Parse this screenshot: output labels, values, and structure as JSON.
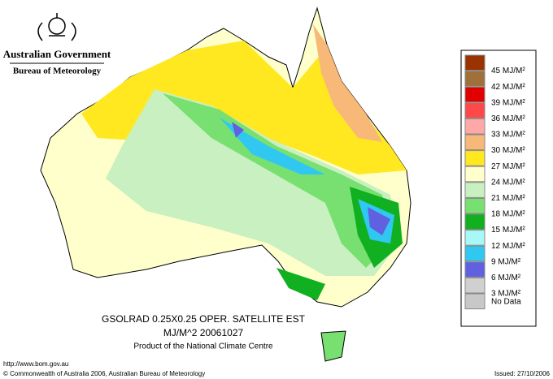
{
  "header": {
    "government": "Australian Government",
    "agency": "Bureau of Meteorology"
  },
  "legend": [
    {
      "label": "45 MJ/M²",
      "color": "#993300"
    },
    {
      "label": "42 MJ/M²",
      "color": "#a0703a"
    },
    {
      "label": "39 MJ/M²",
      "color": "#e00000"
    },
    {
      "label": "36 MJ/M²",
      "color": "#ff4848"
    },
    {
      "label": "33 MJ/M²",
      "color": "#ffa8a8"
    },
    {
      "label": "30 MJ/M²",
      "color": "#f7b878"
    },
    {
      "label": "27 MJ/M²",
      "color": "#ffe820"
    },
    {
      "label": "24 MJ/M²",
      "color": "#ffffcc"
    },
    {
      "label": "21 MJ/M²",
      "color": "#c8f0c0"
    },
    {
      "label": "18 MJ/M²",
      "color": "#78e070"
    },
    {
      "label": "15 MJ/M²",
      "color": "#10b020"
    },
    {
      "label": "12 MJ/M²",
      "color": "#a8f8f8"
    },
    {
      "label": "9 MJ/M²",
      "color": "#30c8f0"
    },
    {
      "label": "6 MJ/M²",
      "color": "#6060e0"
    },
    {
      "label": "3 MJ/M²",
      "color": "#d0d0d0"
    },
    {
      "label": "No Data",
      "color": "#c8c8c8"
    }
  ],
  "caption": {
    "line1": "GSOLRAD    0.25X0.25 OPER. SATELLITE EST",
    "line2": "MJ/M^2  20061027",
    "line3": "Product of the National Climate Centre"
  },
  "footer": {
    "url": "http://www.bom.gov.au",
    "copyright": "© Commonwealth of Australia 2006, Australian Bureau of Meteorology",
    "issued": "Issued: 27/10/2006"
  }
}
